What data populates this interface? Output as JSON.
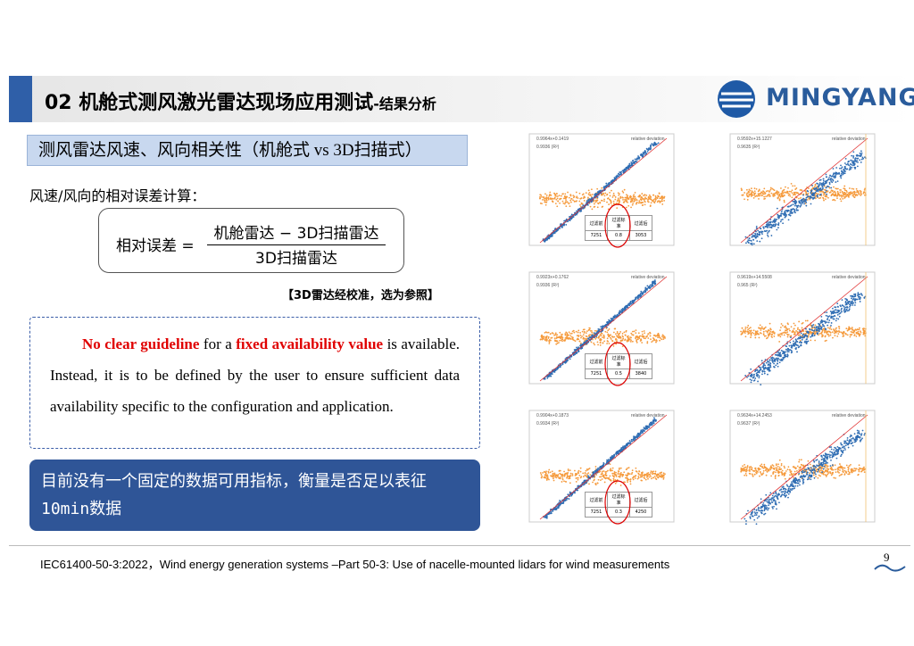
{
  "header": {
    "title": "02 机舱式测风激光雷达现场应用测试",
    "subtitle": "-结果分析",
    "logo": "MINGYANG"
  },
  "section_label": "测风雷达风速、风向相关性（机舱式 vs 3D扫描式）",
  "formula_intro": "风速/风向的相对误差计算：",
  "formula": {
    "lhs": "相对误差 =",
    "numerator": "机舱雷达 − 3D扫描雷达",
    "denominator": "3D扫描雷达"
  },
  "note": "【3D雷达经校准，选为参照】",
  "quote": {
    "red1": "No clear guideline",
    "text1": " for a ",
    "red2": "fixed availability value",
    "text2": " is available. Instead, it is to be defined by the user to ensure sufficient data availability specific to the configuration and application."
  },
  "conclusion": "目前没有一个固定的数据可用指标，衡量是否足以表征10min数据",
  "plots": [
    {
      "fit": "0.9964x+0.1419",
      "r2": "0.9936 (R²)",
      "legend": "relative deviation",
      "table": {
        "header": [
          "过滤前",
          "过滤标准",
          "过滤后"
        ],
        "row": [
          "7251",
          "0.8",
          "3053"
        ]
      }
    },
    {
      "fit": "0.9592x+15.1227",
      "r2": "0.9635 (R²)",
      "legend": "relative deviation"
    },
    {
      "fit": "0.9923x+0.1762",
      "r2": "0.9936 (R²)",
      "legend": "relative deviation",
      "table": {
        "header": [
          "过滤前",
          "过滤标准",
          "过滤后"
        ],
        "row": [
          "7251",
          "0.5",
          "3840"
        ]
      }
    },
    {
      "fit": "0.9619x+14.5508",
      "r2": "0.965 (R²)",
      "legend": "relative deviation"
    },
    {
      "fit": "0.9904x+0.1873",
      "r2": "0.9934 (R²)",
      "legend": "relative deviation",
      "table": {
        "header": [
          "过滤前",
          "过滤标准",
          "过滤后"
        ],
        "row": [
          "7251",
          "0.3",
          "4250"
        ]
      }
    },
    {
      "fit": "0.9634x+14.2453",
      "r2": "0.9637 (R²)",
      "legend": "relative deviation"
    }
  ],
  "footer": {
    "citation": "IEC61400-50-3:2022，Wind energy generation systems –Part 50-3: Use of nacelle-mounted lidars for wind measurements",
    "page": "9"
  }
}
